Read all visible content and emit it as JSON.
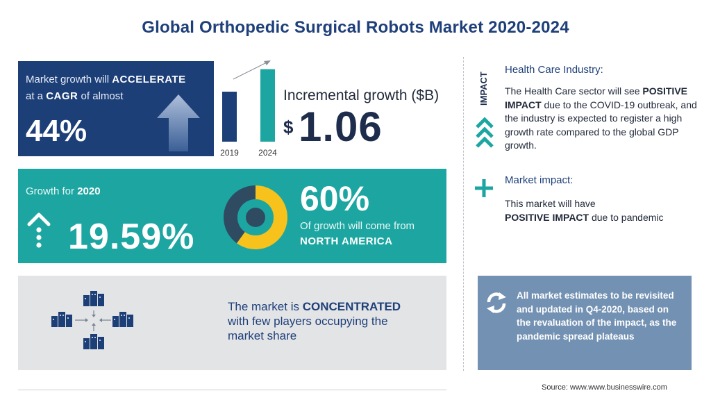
{
  "title": "Global Orthopedic Surgical Robots Market 2020-2024",
  "growth_panel": {
    "line1_prefix": "Market growth will",
    "line1_emphasis": "ACCELERATE",
    "line2_prefix": "at a",
    "line2_emphasis": "CAGR",
    "line2_suffix": "of almost",
    "value": "44%"
  },
  "bars": {
    "years": [
      "2019",
      "2024"
    ],
    "relative_heights": [
      0.6,
      0.87
    ],
    "colors": [
      "#1d3f78",
      "#1da6a1"
    ]
  },
  "incremental": {
    "label": "Incremental growth ($B)",
    "currency": "$",
    "value": "1.06"
  },
  "growth_2020": {
    "label_prefix": "Growth for",
    "label_year": "2020",
    "value": "19.59%"
  },
  "region": {
    "percent": "60%",
    "desc": "Of growth will come from",
    "name": "NORTH AMERICA",
    "donut_share": 0.6,
    "colors": {
      "highlight": "#f7c21b",
      "rest": "#2f4b62",
      "ring_inner": "#1da6a1"
    }
  },
  "concentration": {
    "prefix": "The market is",
    "emphasis": "CONCENTRATED",
    "line2": "with few players occupying the",
    "line3": "market share"
  },
  "impact": {
    "vertical_label": "IMPACT",
    "industry_title": "Health Care Industry:",
    "industry_text_1": "The Health Care sector will see ",
    "industry_text_bold": "POSITIVE IMPACT",
    "industry_text_2": " due to the COVID-19 outbreak, and the industry is expected to register a high growth rate compared to the global GDP growth.",
    "market_title": "Market impact:",
    "market_text_1": "This market will have",
    "market_text_bold": "POSITIVE IMPACT",
    "market_text_2": " due to pandemic"
  },
  "estimates": {
    "text": "All market estimates to be revisited and updated in Q4-2020, based on the revaluation of the impact, as the pandemic spread plateaus"
  },
  "source": "Source: www.www.businesswire.com",
  "colors": {
    "navy": "#1d3f78",
    "teal": "#1da6a1",
    "grey": "#e3e4e6",
    "slate": "#7391b3"
  }
}
